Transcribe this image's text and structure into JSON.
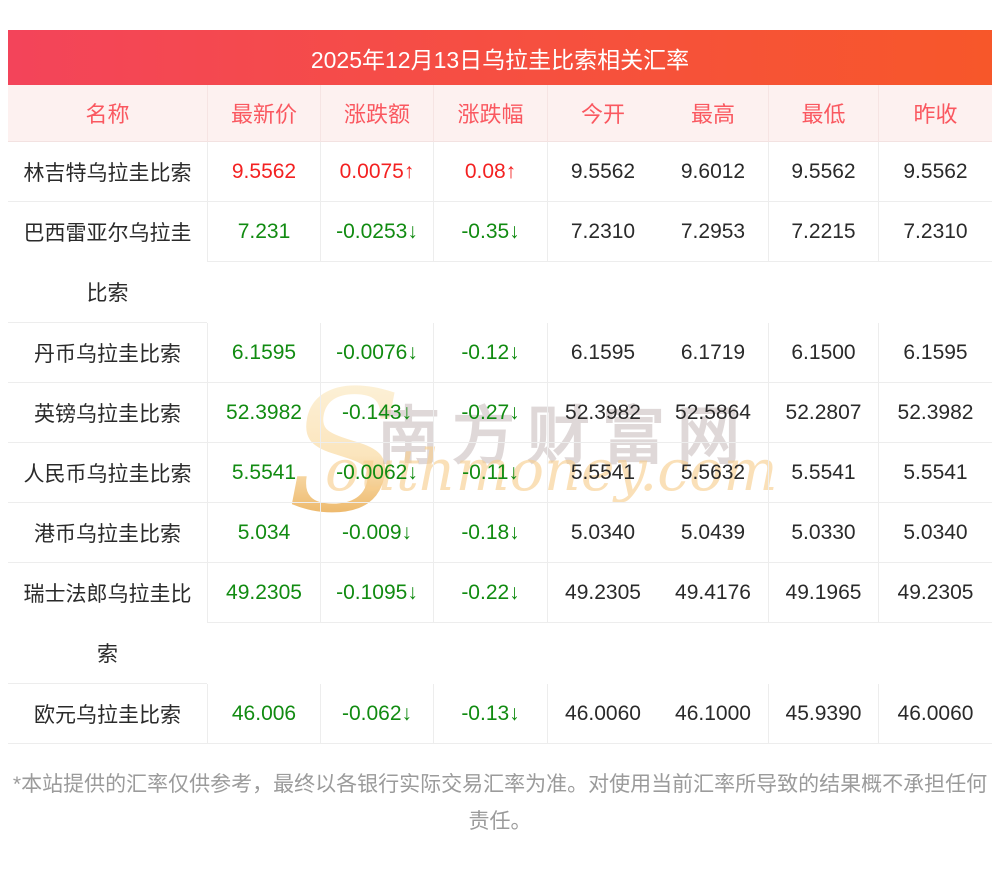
{
  "title": "2025年12月13日乌拉圭比索相关汇率",
  "table": {
    "columns": [
      "名称",
      "最新价",
      "涨跌额",
      "涨跌幅",
      "今开",
      "最高",
      "最低",
      "昨收"
    ],
    "rows": [
      {
        "name_lines": [
          "林吉特乌拉圭比索"
        ],
        "latest": "9.5562",
        "change": "0.0075↑",
        "change_pct": "0.08↑",
        "open": "9.5562",
        "high": "9.6012",
        "low": "9.5562",
        "prev_close": "9.5562",
        "direction": "up"
      },
      {
        "name_lines": [
          "巴西雷亚尔乌拉圭",
          "比索"
        ],
        "latest": "7.231",
        "change": "-0.0253↓",
        "change_pct": "-0.35↓",
        "open": "7.2310",
        "high": "7.2953",
        "low": "7.2215",
        "prev_close": "7.2310",
        "direction": "down"
      },
      {
        "name_lines": [
          "丹币乌拉圭比索"
        ],
        "latest": "6.1595",
        "change": "-0.0076↓",
        "change_pct": "-0.12↓",
        "open": "6.1595",
        "high": "6.1719",
        "low": "6.1500",
        "prev_close": "6.1595",
        "direction": "down"
      },
      {
        "name_lines": [
          "英镑乌拉圭比索"
        ],
        "latest": "52.3982",
        "change": "-0.143↓",
        "change_pct": "-0.27↓",
        "open": "52.3982",
        "high": "52.5864",
        "low": "52.2807",
        "prev_close": "52.3982",
        "direction": "down"
      },
      {
        "name_lines": [
          "人民币乌拉圭比索"
        ],
        "latest": "5.5541",
        "change": "-0.0062↓",
        "change_pct": "-0.11↓",
        "open": "5.5541",
        "high": "5.5632",
        "low": "5.5541",
        "prev_close": "5.5541",
        "direction": "down"
      },
      {
        "name_lines": [
          "港币乌拉圭比索"
        ],
        "latest": "5.034",
        "change": "-0.009↓",
        "change_pct": "-0.18↓",
        "open": "5.0340",
        "high": "5.0439",
        "low": "5.0330",
        "prev_close": "5.0340",
        "direction": "down"
      },
      {
        "name_lines": [
          "瑞士法郎乌拉圭比",
          "索"
        ],
        "latest": "49.2305",
        "change": "-0.1095↓",
        "change_pct": "-0.22↓",
        "open": "49.2305",
        "high": "49.4176",
        "low": "49.1965",
        "prev_close": "49.2305",
        "direction": "down"
      },
      {
        "name_lines": [
          "欧元乌拉圭比索"
        ],
        "latest": "46.006",
        "change": "-0.062↓",
        "change_pct": "-0.13↓",
        "open": "46.0060",
        "high": "46.1000",
        "low": "45.9390",
        "prev_close": "46.0060",
        "direction": "down"
      }
    ]
  },
  "watermark": {
    "initial": "S",
    "chinese": "南方财富网",
    "english": "outhmoney.com"
  },
  "footer_note": "*本站提供的汇率仅供参考，最终以各银行实际交易汇率为准。对使用当前汇率所导致的结果概不承担任何责任。",
  "colors": {
    "up": "#f32121",
    "down": "#118b11",
    "header_text": "#fa5860",
    "header_bg": "#fdf1f0",
    "title_gradient_left": "#f3445a",
    "title_gradient_right": "#f7572a"
  }
}
